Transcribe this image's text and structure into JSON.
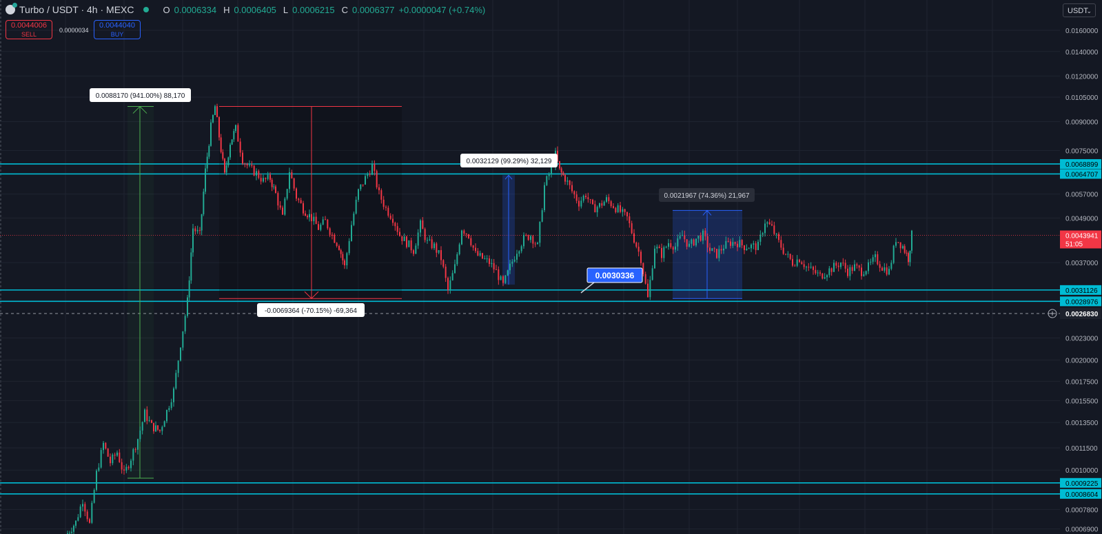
{
  "header": {
    "symbol": "Turbo / USDT · 4h · MEXC",
    "ohlc": [
      {
        "k": "O",
        "v": "0.0006334"
      },
      {
        "k": "H",
        "v": "0.0006405"
      },
      {
        "k": "L",
        "v": "0.0006215"
      },
      {
        "k": "C",
        "v": "0.0006377"
      }
    ],
    "change": "+0.0000047 (+0.74%)"
  },
  "trade": {
    "sell_price": "0.0044006",
    "sell_label": "SELL",
    "spread": "0.0000034",
    "buy_price": "0.0044040",
    "buy_label": "BUY"
  },
  "currency": "USDT",
  "colors": {
    "background": "#141823",
    "up": "#22ab94",
    "down": "#f23645",
    "level": "#00bcd4",
    "measure_up": "#2962ff",
    "measure_down": "#f23645",
    "measure_long": "#4caf50"
  },
  "chart_data": {
    "type": "candlestick",
    "y_scale": "log",
    "ylim": [
      0.00065,
      0.0175
    ],
    "y_ticks": [
      "0.0160000",
      "0.0140000",
      "0.0120000",
      "0.0105000",
      "0.0090000",
      "0.0075000",
      "0.0057000",
      "0.0049000",
      "0.0037000",
      "0.0023000",
      "0.0020000",
      "0.0017500",
      "0.0015500",
      "0.0013500",
      "0.0011500",
      "0.0010000",
      "0.0007800",
      "0.0006900"
    ],
    "horizontal_levels": [
      "0.0068899",
      "0.0064707",
      "0.0031126",
      "0.0028976",
      "0.0009225",
      "0.0008604"
    ],
    "last_price": {
      "value": "0.0043941",
      "countdown": "51:05"
    },
    "crosshair_price": "0.0026830",
    "price_note": "0.0030336",
    "measurements": [
      {
        "label": "0.0088170 (941.00%) 88,170",
        "from": 0.00095,
        "to": 0.0099
      },
      {
        "label": "-0.0069364 (-70.15%) -69,364",
        "from": 0.0099,
        "to": 0.00295
      },
      {
        "label": "0.0032129 (99.29%) 32,129",
        "from": 0.00322,
        "to": 0.00642
      },
      {
        "label": "0.0021967 (74.36%) 21,967",
        "from": 0.00295,
        "to": 0.00514
      }
    ],
    "price_path": [
      [
        95,
        0.00066
      ],
      [
        110,
        0.00072
      ],
      [
        120,
        0.00083
      ],
      [
        130,
        0.00071
      ],
      [
        140,
        0.00098
      ],
      [
        150,
        0.00118
      ],
      [
        160,
        0.00105
      ],
      [
        170,
        0.00112
      ],
      [
        180,
        0.00097
      ],
      [
        190,
        0.00108
      ],
      [
        200,
        0.00122
      ],
      [
        210,
        0.00143
      ],
      [
        220,
        0.00132
      ],
      [
        232,
        0.00128
      ],
      [
        242,
        0.00145
      ],
      [
        252,
        0.00165
      ],
      [
        262,
        0.00222
      ],
      [
        272,
        0.0029
      ],
      [
        280,
        0.0046
      ],
      [
        290,
        0.0044
      ],
      [
        298,
        0.0066
      ],
      [
        306,
        0.0087
      ],
      [
        312,
        0.0099
      ],
      [
        318,
        0.0082
      ],
      [
        326,
        0.0064
      ],
      [
        334,
        0.0079
      ],
      [
        342,
        0.0086
      ],
      [
        352,
        0.0071
      ],
      [
        362,
        0.0067
      ],
      [
        372,
        0.0065
      ],
      [
        382,
        0.0062
      ],
      [
        392,
        0.0063
      ],
      [
        400,
        0.0057
      ],
      [
        410,
        0.0049
      ],
      [
        420,
        0.0066
      ],
      [
        430,
        0.0056
      ],
      [
        440,
        0.0052
      ],
      [
        452,
        0.0049
      ],
      [
        462,
        0.0046
      ],
      [
        472,
        0.0048
      ],
      [
        482,
        0.0044
      ],
      [
        492,
        0.0041
      ],
      [
        500,
        0.0036
      ],
      [
        510,
        0.0047
      ],
      [
        520,
        0.0058
      ],
      [
        530,
        0.0063
      ],
      [
        540,
        0.0068
      ],
      [
        550,
        0.0057
      ],
      [
        560,
        0.0052
      ],
      [
        570,
        0.0049
      ],
      [
        580,
        0.0044
      ],
      [
        590,
        0.0042
      ],
      [
        600,
        0.004
      ],
      [
        610,
        0.0047
      ],
      [
        620,
        0.0042
      ],
      [
        630,
        0.0041
      ],
      [
        640,
        0.0038
      ],
      [
        650,
        0.0031
      ],
      [
        660,
        0.0036
      ],
      [
        670,
        0.0046
      ],
      [
        680,
        0.0044
      ],
      [
        690,
        0.0039
      ],
      [
        700,
        0.0038
      ],
      [
        710,
        0.0037
      ],
      [
        720,
        0.0035
      ],
      [
        730,
        0.0032
      ],
      [
        740,
        0.0036
      ],
      [
        750,
        0.004
      ],
      [
        760,
        0.0043
      ],
      [
        770,
        0.0044
      ],
      [
        780,
        0.0041
      ],
      [
        790,
        0.006
      ],
      [
        800,
        0.0067
      ],
      [
        806,
        0.0073
      ],
      [
        812,
        0.0066
      ],
      [
        820,
        0.0063
      ],
      [
        830,
        0.0058
      ],
      [
        840,
        0.0054
      ],
      [
        850,
        0.0057
      ],
      [
        860,
        0.0052
      ],
      [
        870,
        0.0053
      ],
      [
        880,
        0.0055
      ],
      [
        890,
        0.0053
      ],
      [
        900,
        0.0051
      ],
      [
        910,
        0.0049
      ],
      [
        920,
        0.0043
      ],
      [
        930,
        0.0038
      ],
      [
        940,
        0.00295
      ],
      [
        950,
        0.0041
      ],
      [
        960,
        0.0039
      ],
      [
        970,
        0.0042
      ],
      [
        980,
        0.0041
      ],
      [
        990,
        0.0044
      ],
      [
        1000,
        0.0041
      ],
      [
        1010,
        0.0043
      ],
      [
        1020,
        0.0044
      ],
      [
        1030,
        0.004
      ],
      [
        1040,
        0.0039
      ],
      [
        1050,
        0.0041
      ],
      [
        1060,
        0.0042
      ],
      [
        1070,
        0.0042
      ],
      [
        1080,
        0.0041
      ],
      [
        1090,
        0.0041
      ],
      [
        1100,
        0.0041
      ],
      [
        1110,
        0.0048
      ],
      [
        1120,
        0.0046
      ],
      [
        1130,
        0.0042
      ],
      [
        1140,
        0.0039
      ],
      [
        1150,
        0.0037
      ],
      [
        1160,
        0.0038
      ],
      [
        1170,
        0.0036
      ],
      [
        1180,
        0.0035
      ],
      [
        1190,
        0.0034
      ],
      [
        1200,
        0.0035
      ],
      [
        1210,
        0.0036
      ],
      [
        1220,
        0.0037
      ],
      [
        1230,
        0.0035
      ],
      [
        1240,
        0.0036
      ],
      [
        1250,
        0.0035
      ],
      [
        1260,
        0.0036
      ],
      [
        1270,
        0.0038
      ],
      [
        1280,
        0.0036
      ],
      [
        1290,
        0.0035
      ],
      [
        1300,
        0.0043
      ],
      [
        1310,
        0.0041
      ],
      [
        1318,
        0.0038
      ],
      [
        1323,
        0.0044
      ]
    ]
  }
}
